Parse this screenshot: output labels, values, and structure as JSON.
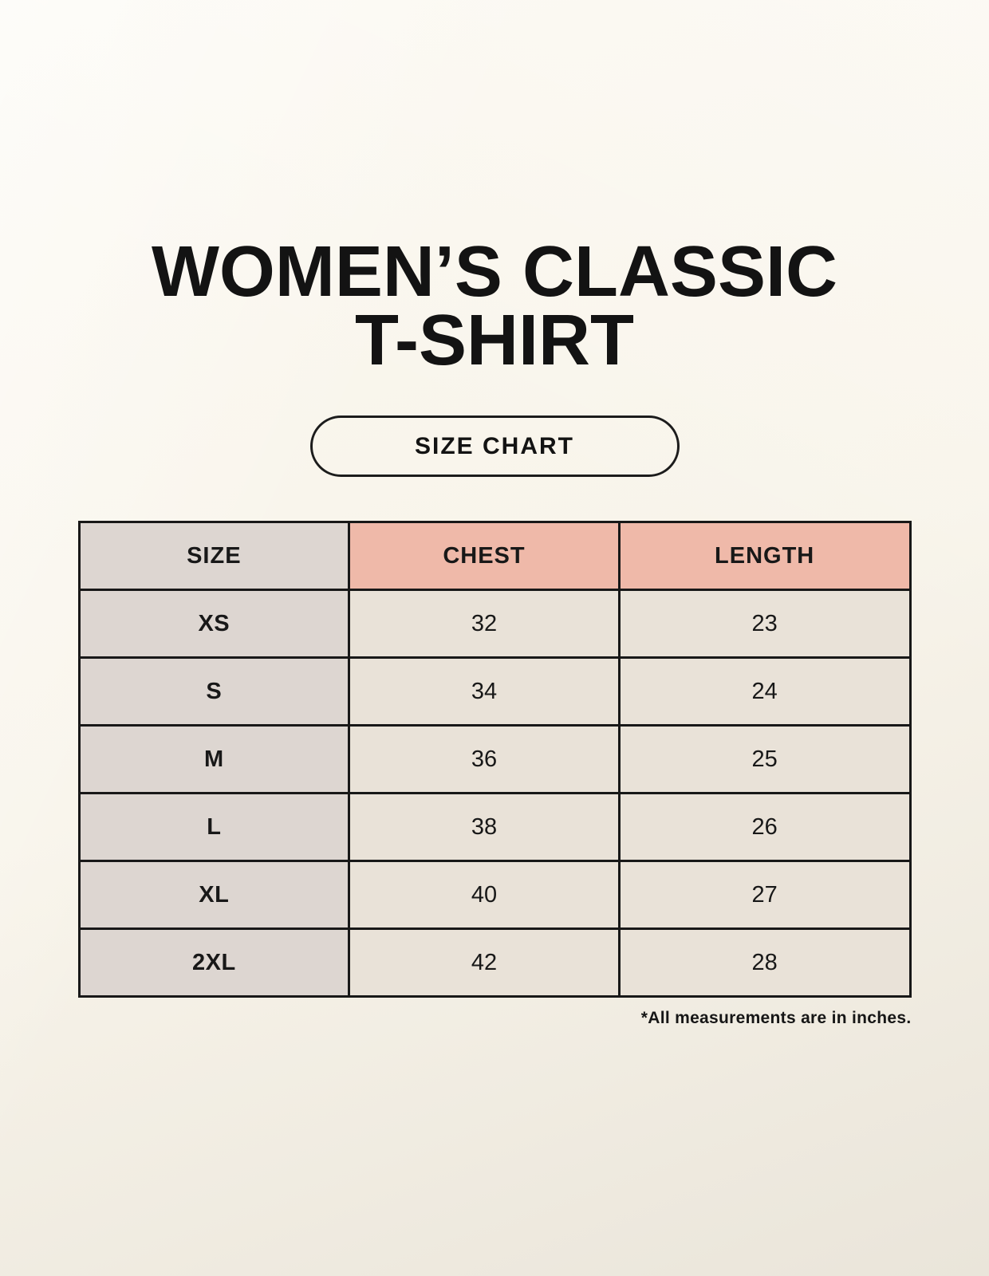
{
  "header": {
    "title_line1": "WOMEN’S CLASSIC",
    "title_line2": "T-SHIRT",
    "badge_label": "SIZE CHART"
  },
  "table": {
    "columns": [
      "SIZE",
      "CHEST",
      "LENGTH"
    ],
    "rows": [
      {
        "size": "XS",
        "chest": "32",
        "length": "23"
      },
      {
        "size": "S",
        "chest": "34",
        "length": "24"
      },
      {
        "size": "M",
        "chest": "36",
        "length": "25"
      },
      {
        "size": "L",
        "chest": "38",
        "length": "26"
      },
      {
        "size": "XL",
        "chest": "40",
        "length": "27"
      },
      {
        "size": "2XL",
        "chest": "42",
        "length": "28"
      }
    ],
    "units_note": "*All measurements are in inches."
  },
  "colors": {
    "page_background": "#f9f5ec",
    "size_column_background": "#ddd6d1",
    "measure_header_background": "#efb9a9",
    "data_cell_background": "#e9e2d8",
    "table_border": "#181818",
    "text": "#181818"
  }
}
